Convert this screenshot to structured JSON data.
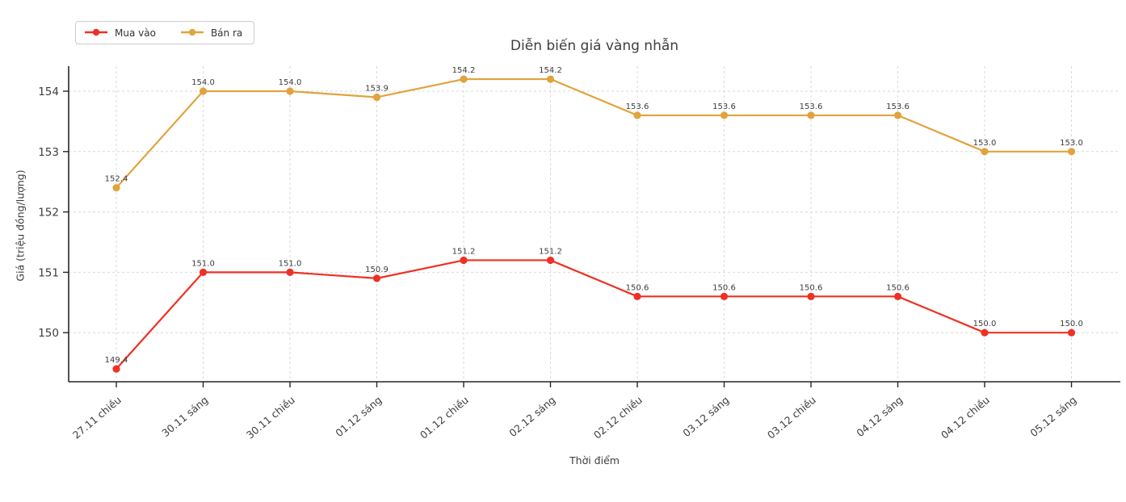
{
  "chart_data": {
    "type": "line",
    "title": "Diễn biến giá vàng nhẫn",
    "xlabel": "Thời điểm",
    "ylabel": "Giá (triệu đồng/lượng)",
    "categories": [
      "27.11 chiều",
      "30.11 sáng",
      "30.11 chiều",
      "01.12 sáng",
      "01.12 chiều",
      "02.12 sáng",
      "02.12 chiều",
      "03.12 sáng",
      "03.12 chiều",
      "04.12 sáng",
      "04.12 chiều",
      "05.12 sáng"
    ],
    "series": [
      {
        "name": "Mua vào",
        "color": "#ee3124",
        "values": [
          149.4,
          151.0,
          151.0,
          150.9,
          151.2,
          151.2,
          150.6,
          150.6,
          150.6,
          150.6,
          150.0,
          150.0
        ]
      },
      {
        "name": "Bán ra",
        "color": "#e1a33d",
        "values": [
          152.4,
          154.0,
          154.0,
          153.9,
          154.2,
          154.2,
          153.6,
          153.6,
          153.6,
          153.6,
          153.0,
          153.0
        ]
      }
    ],
    "yticks": [
      150,
      151,
      152,
      153,
      154
    ],
    "ylim": [
      149.19,
      154.51
    ],
    "grid": "dashed",
    "legend_position": "top-left",
    "data_labels": true,
    "colors": {
      "grid": "#d9d9d9",
      "spine": "#262626",
      "tick_label": "#3d3d3d",
      "data_label": "#3c3c3c"
    }
  }
}
